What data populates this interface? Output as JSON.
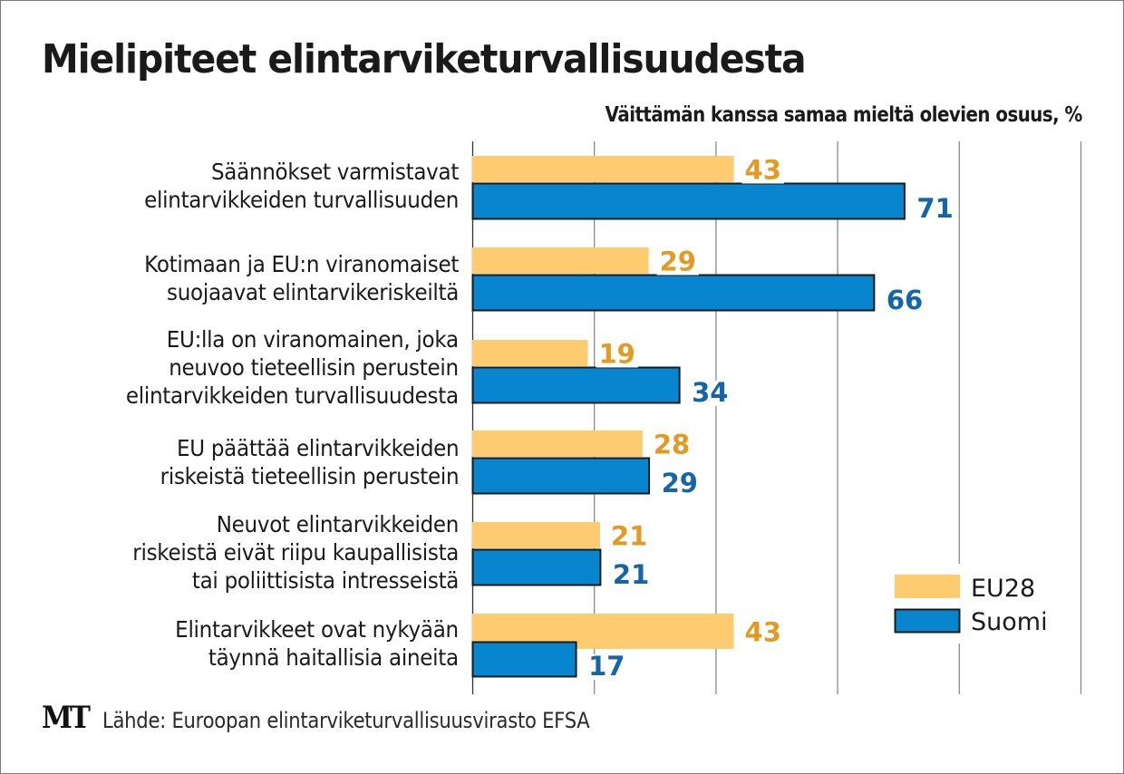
{
  "chart_data": {
    "type": "bar",
    "orientation": "horizontal",
    "title": "Mielipiteet elintarviketurvallisuudesta",
    "subtitle": "Väittämän kanssa samaa mieltä olevien osuus, %",
    "xlabel": "",
    "ylabel": "",
    "xlim": [
      0,
      100
    ],
    "grid": true,
    "grid_step": 20,
    "legend_position": "bottom-right",
    "categories": [
      "Säännökset varmistavat\nelintarvikkeiden turvallisuuden",
      "Kotimaan ja EU:n viranomaiset\nsuojaavat elintarvikeriskeiltä",
      "EU:lla on viranomainen, joka\nneuvoo tieteellisin perustein\nelintarvikkeiden turvallisuudesta",
      "EU päättää elintarvikkeiden\nriskeistä tieteellisin perustein",
      "Neuvot elintarvikkeiden\nriskeistä eivät riipu kaupallisista\ntai poliittisista intresseistä",
      "Elintarvikkeet ovat nykyään\ntäynnä haitallisia aineita"
    ],
    "series": [
      {
        "name": "EU28",
        "color": "#fecb70",
        "label_color": "#e39a22",
        "values": [
          43,
          29,
          19,
          28,
          21,
          43
        ]
      },
      {
        "name": "Suomi",
        "color": "#0786cf",
        "label_color": "#1566a8",
        "values": [
          71,
          66,
          34,
          29,
          21,
          17
        ]
      }
    ],
    "source": "Lähde: Euroopan elintarviketurvallisuusvirasto EFSA",
    "logo": "MT"
  }
}
